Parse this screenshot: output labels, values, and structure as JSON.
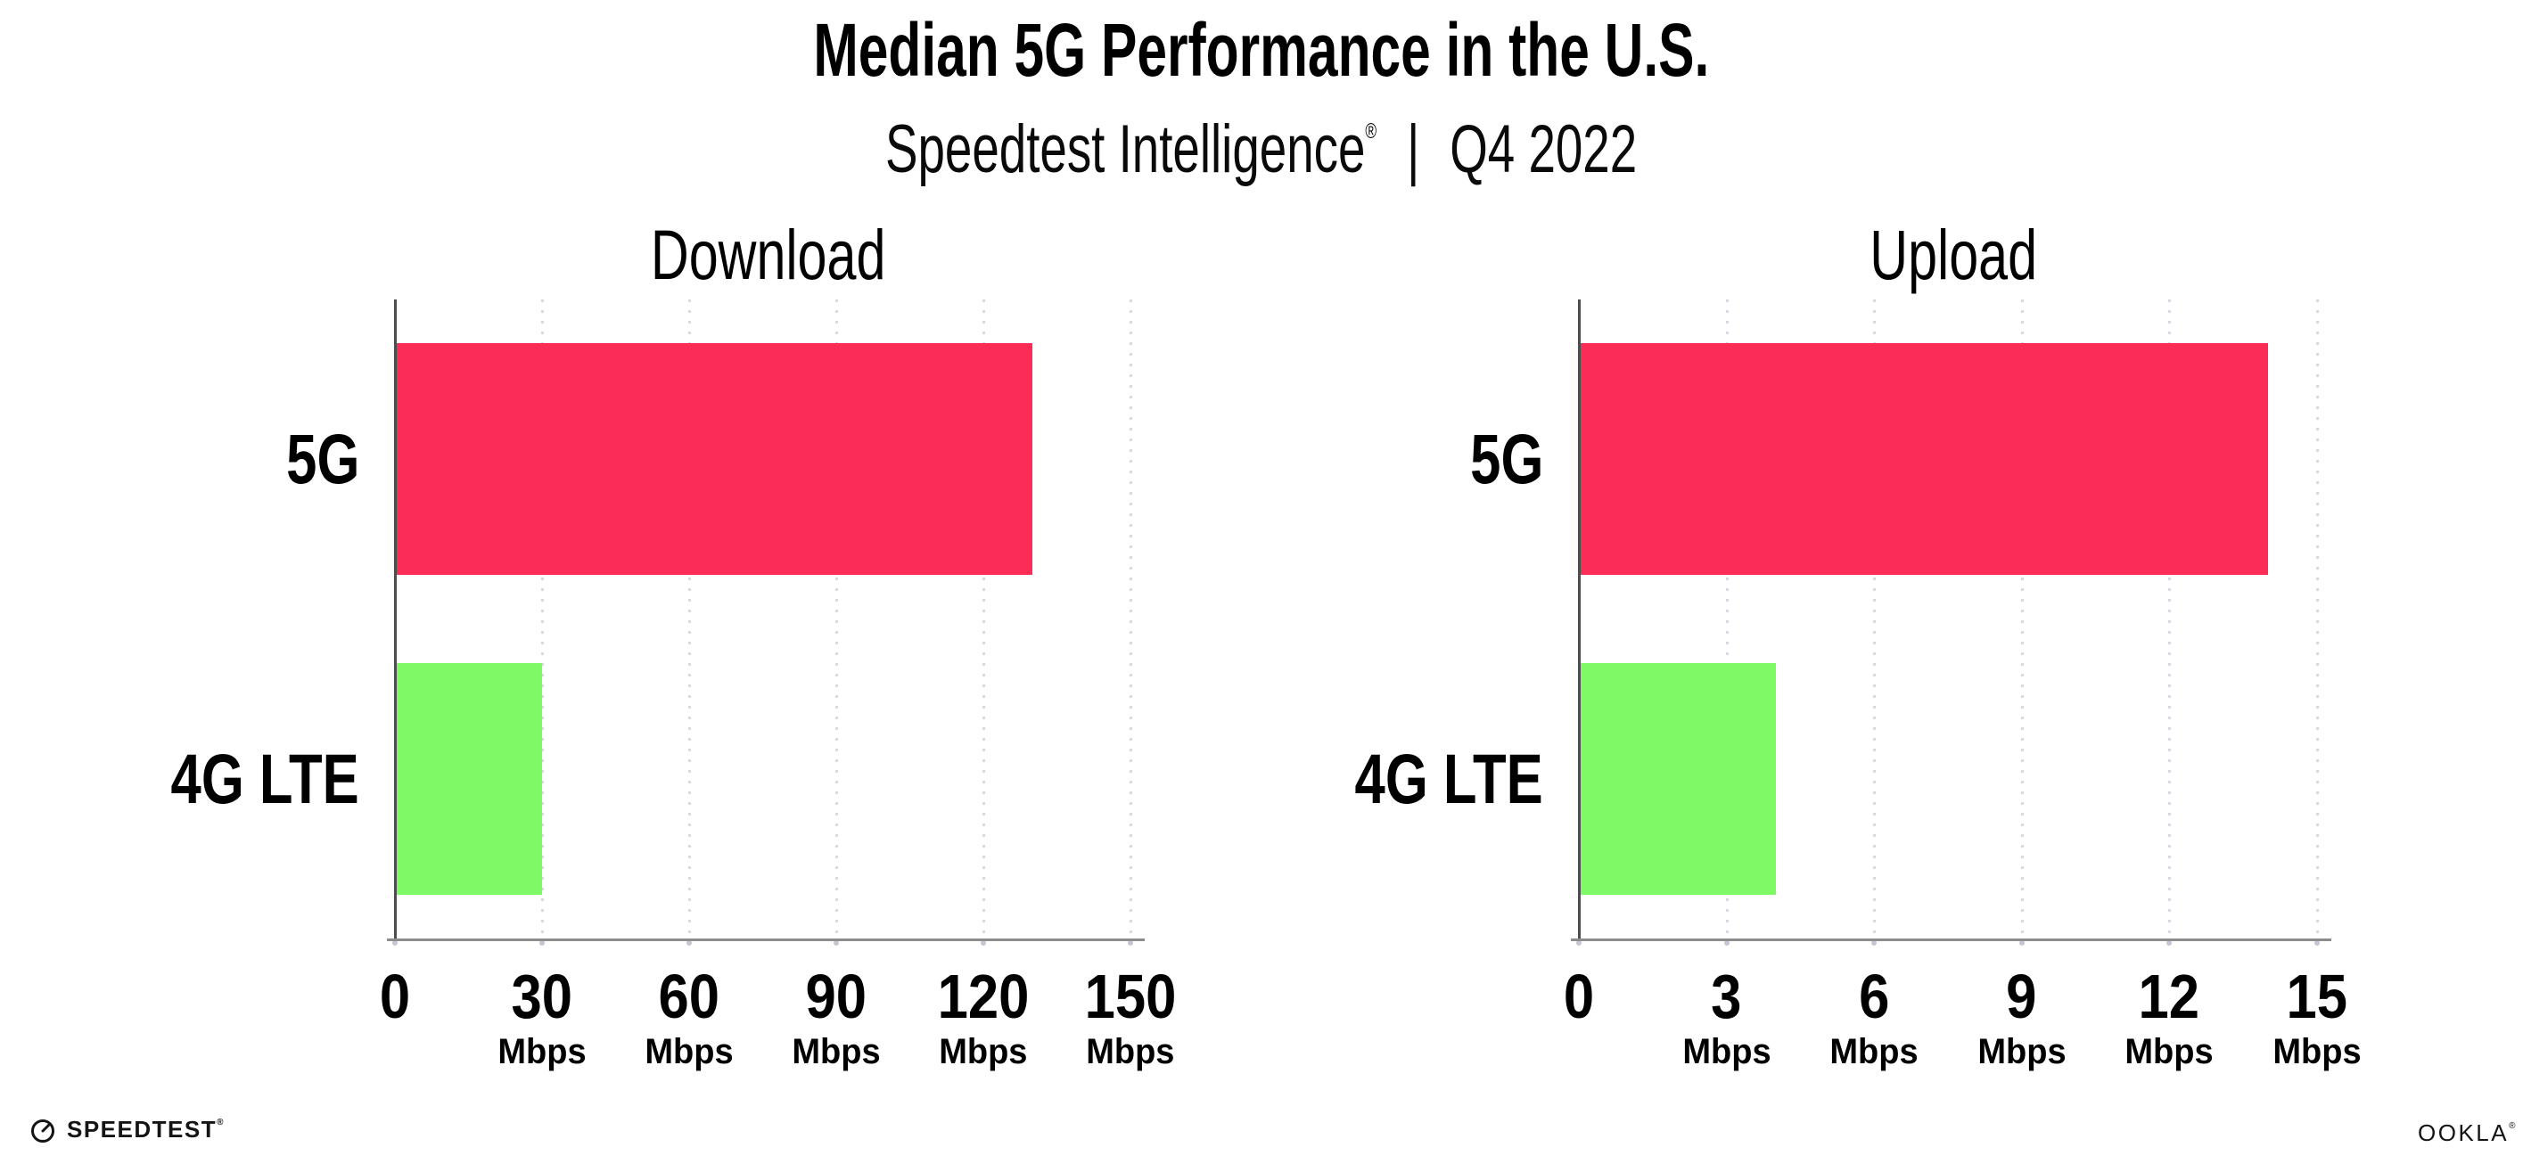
{
  "header": {
    "title": "Median 5G Performance in the U.S.",
    "subtitle": {
      "brand": "Speedtest Intelligence",
      "registered_mark": "®",
      "separator": "|",
      "period": "Q4 2022"
    }
  },
  "chart_data": [
    {
      "type": "bar",
      "orientation": "horizontal",
      "title": "Download",
      "categories": [
        "5G",
        "4G LTE"
      ],
      "values": [
        130,
        30
      ],
      "unit": "Mbps",
      "xticks": [
        0,
        30,
        60,
        90,
        120,
        150
      ],
      "xlim": [
        0,
        152.4
      ],
      "bar_colors": [
        "#fb2c55",
        "#7dfa65"
      ],
      "grid": {
        "vertical_dotted": true,
        "color": "#d8d8e2"
      },
      "legend": "none"
    },
    {
      "type": "bar",
      "orientation": "horizontal",
      "title": "Upload",
      "categories": [
        "5G",
        "4G LTE"
      ],
      "values": [
        14,
        4
      ],
      "unit": "Mbps",
      "xticks": [
        0,
        3,
        6,
        9,
        12,
        15
      ],
      "xlim": [
        0,
        15.24
      ],
      "bar_colors": [
        "#fb2c55",
        "#7dfa65"
      ],
      "grid": {
        "vertical_dotted": true,
        "color": "#d8d8e2"
      },
      "legend": "none"
    }
  ],
  "footer": {
    "speedtest_wordmark": "SPEEDTEST",
    "speedtest_mark": "®",
    "ookla_wordmark": "OOKLA",
    "ookla_mark": "®"
  },
  "colors": {
    "bar_5g": "#fb2c55",
    "bar_4g_lte": "#7dfa65",
    "axis_line": "#8c8c8c",
    "y_spine": "#4d4d4d",
    "gridline": "#d8d8e2",
    "background": "#ffffff",
    "text": "#000000"
  }
}
